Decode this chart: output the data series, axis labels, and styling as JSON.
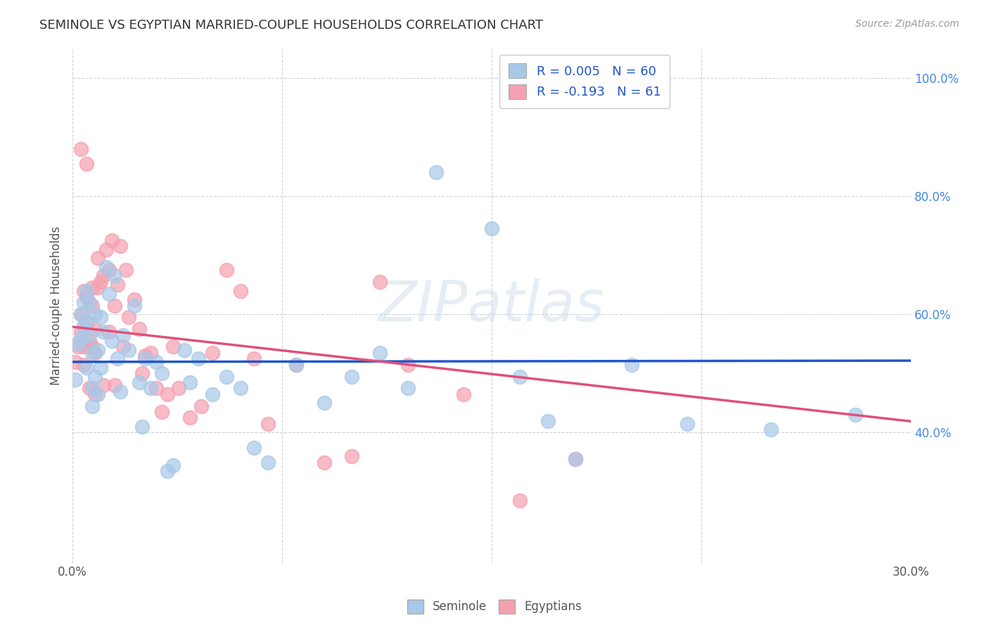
{
  "title": "SEMINOLE VS EGYPTIAN MARRIED-COUPLE HOUSEHOLDS CORRELATION CHART",
  "source": "Source: ZipAtlas.com",
  "ylabel": "Married-couple Households",
  "ytick_labels": [
    "40.0%",
    "60.0%",
    "80.0%",
    "100.0%"
  ],
  "ytick_values": [
    0.4,
    0.6,
    0.8,
    1.0
  ],
  "xlim": [
    0.0,
    0.3
  ],
  "ylim": [
    0.18,
    1.05
  ],
  "legend_entry_seminole": "R = 0.005   N = 60",
  "legend_entry_egyptians": "R = -0.193   N = 61",
  "seminole_color": "#a8c8e8",
  "egyptians_color": "#f4a0b0",
  "seminole_line_color": "#2255cc",
  "egyptians_line_color": "#e0507a",
  "watermark_text": "ZIPatlas",
  "seminole_x": [
    0.001,
    0.002,
    0.003,
    0.003,
    0.004,
    0.004,
    0.005,
    0.005,
    0.005,
    0.006,
    0.006,
    0.007,
    0.007,
    0.007,
    0.008,
    0.008,
    0.009,
    0.009,
    0.01,
    0.01,
    0.011,
    0.012,
    0.013,
    0.014,
    0.015,
    0.016,
    0.017,
    0.018,
    0.02,
    0.022,
    0.024,
    0.025,
    0.026,
    0.028,
    0.03,
    0.032,
    0.034,
    0.036,
    0.04,
    0.042,
    0.045,
    0.05,
    0.055,
    0.06,
    0.065,
    0.07,
    0.08,
    0.09,
    0.1,
    0.11,
    0.12,
    0.13,
    0.15,
    0.16,
    0.17,
    0.18,
    0.2,
    0.22,
    0.25,
    0.28
  ],
  "seminole_y": [
    0.49,
    0.55,
    0.6,
    0.56,
    0.62,
    0.58,
    0.64,
    0.59,
    0.51,
    0.565,
    0.62,
    0.535,
    0.475,
    0.445,
    0.6,
    0.495,
    0.54,
    0.465,
    0.51,
    0.595,
    0.57,
    0.68,
    0.635,
    0.555,
    0.665,
    0.525,
    0.47,
    0.565,
    0.54,
    0.615,
    0.485,
    0.41,
    0.525,
    0.475,
    0.52,
    0.5,
    0.335,
    0.345,
    0.54,
    0.485,
    0.525,
    0.465,
    0.495,
    0.475,
    0.375,
    0.35,
    0.515,
    0.45,
    0.495,
    0.535,
    0.475,
    0.84,
    0.745,
    0.495,
    0.42,
    0.355,
    0.515,
    0.415,
    0.405,
    0.43
  ],
  "egyptians_x": [
    0.001,
    0.002,
    0.003,
    0.003,
    0.004,
    0.004,
    0.005,
    0.005,
    0.006,
    0.006,
    0.007,
    0.007,
    0.008,
    0.008,
    0.009,
    0.01,
    0.011,
    0.012,
    0.013,
    0.014,
    0.015,
    0.016,
    0.017,
    0.018,
    0.019,
    0.02,
    0.022,
    0.024,
    0.026,
    0.028,
    0.03,
    0.032,
    0.034,
    0.036,
    0.038,
    0.042,
    0.046,
    0.05,
    0.055,
    0.06,
    0.065,
    0.07,
    0.08,
    0.09,
    0.1,
    0.11,
    0.12,
    0.14,
    0.16,
    0.18,
    0.005,
    0.008,
    0.015,
    0.025,
    0.003,
    0.004,
    0.006,
    0.007,
    0.009,
    0.011,
    0.013
  ],
  "egyptians_y": [
    0.52,
    0.545,
    0.57,
    0.6,
    0.545,
    0.515,
    0.585,
    0.63,
    0.555,
    0.475,
    0.615,
    0.645,
    0.575,
    0.535,
    0.695,
    0.655,
    0.665,
    0.71,
    0.675,
    0.725,
    0.615,
    0.65,
    0.715,
    0.545,
    0.675,
    0.595,
    0.625,
    0.575,
    0.53,
    0.535,
    0.475,
    0.435,
    0.465,
    0.545,
    0.475,
    0.425,
    0.445,
    0.535,
    0.675,
    0.64,
    0.525,
    0.415,
    0.515,
    0.35,
    0.36,
    0.655,
    0.515,
    0.465,
    0.285,
    0.355,
    0.855,
    0.465,
    0.48,
    0.5,
    0.88,
    0.64,
    0.545,
    0.545,
    0.645,
    0.48,
    0.57
  ]
}
